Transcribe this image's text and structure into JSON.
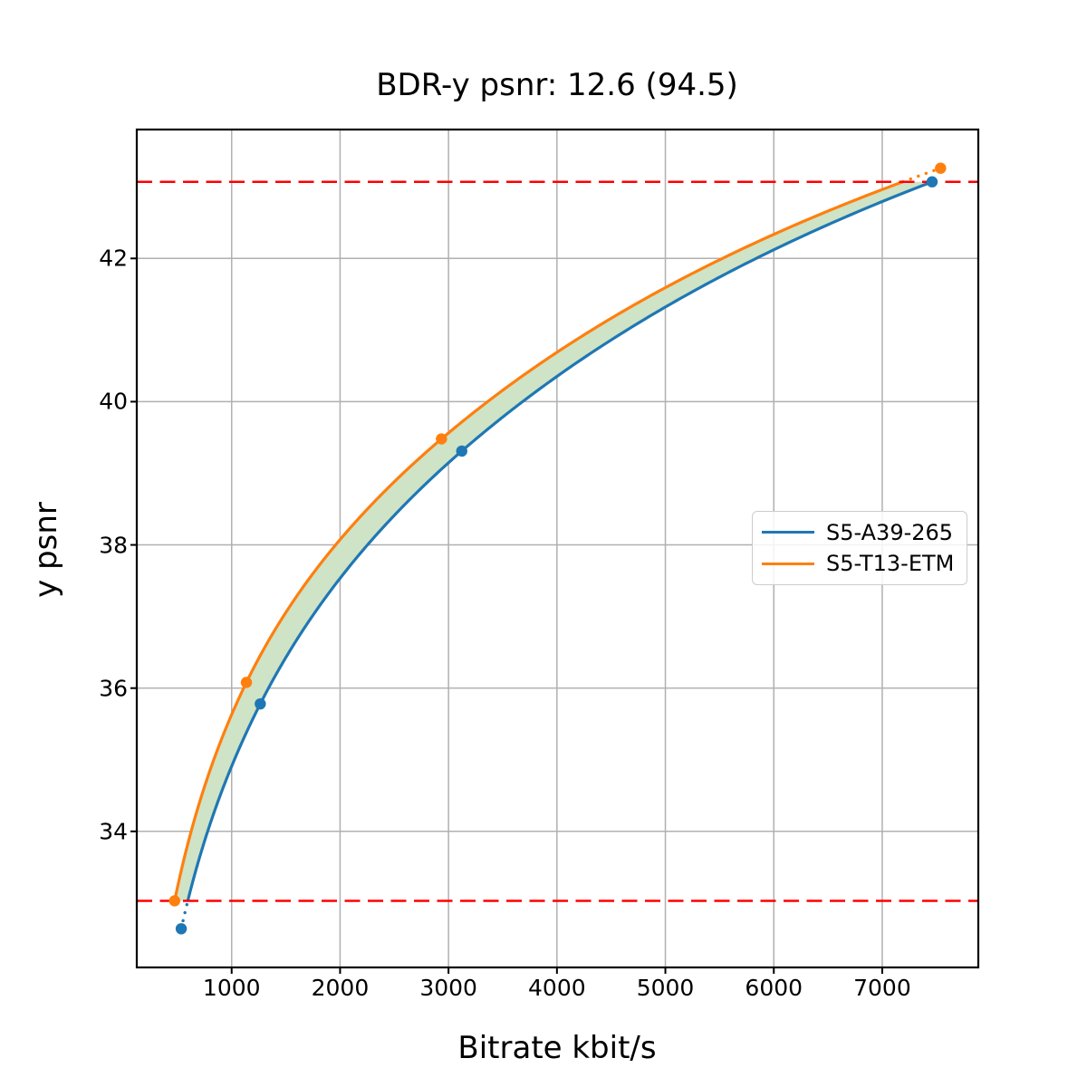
{
  "chart_data": {
    "type": "line",
    "title": "BDR-y psnr: 12.6 (94.5)",
    "xlabel": "Bitrate kbit/s",
    "ylabel": "y psnr",
    "xlim": [
      125,
      7886
    ],
    "ylim": [
      32.1,
      43.8
    ],
    "xticks": [
      1000,
      2000,
      3000,
      4000,
      5000,
      6000,
      7000
    ],
    "yticks": [
      34,
      36,
      38,
      40,
      42
    ],
    "grid": true,
    "grid_color": "#b0b0b0",
    "background_color": "#ffffff",
    "legend_position": "center-right",
    "series": [
      {
        "name": "S5-A39-265",
        "color": "#1f77b4",
        "marker": "circle",
        "points": [
          [
            535,
            32.64
          ],
          [
            1264,
            35.78
          ],
          [
            3122,
            39.31
          ],
          [
            7460,
            43.07
          ]
        ]
      },
      {
        "name": "S5-T13-ETM",
        "color": "#ff7f0e",
        "marker": "circle",
        "points": [
          [
            474,
            33.03
          ],
          [
            1136,
            36.08
          ],
          [
            2935,
            39.48
          ],
          [
            7538,
            43.26
          ]
        ]
      }
    ],
    "overlap": {
      "lower": 33.03,
      "upper": 43.07,
      "color": "#ff0000",
      "style": "dashed"
    },
    "fill_between": {
      "color": "#cfe3c6"
    }
  }
}
